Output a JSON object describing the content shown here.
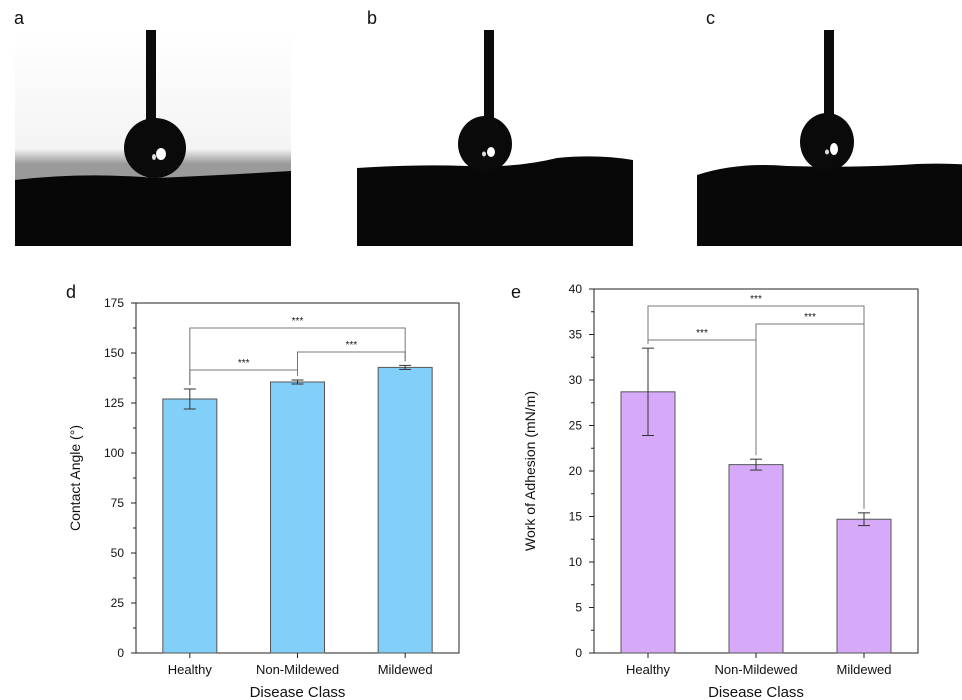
{
  "panels": {
    "a": "a",
    "b": "b",
    "c": "c",
    "d": "d",
    "e": "e"
  },
  "colors": {
    "contact_angle_bar": "#82cffa",
    "adhesion_bar": "#d6aaf8",
    "bar_stroke": "#555555"
  },
  "chart_data": [
    {
      "type": "bar",
      "panel": "d",
      "categories": [
        "Healthy",
        "Non-Mildewed",
        "Mildewed"
      ],
      "values": [
        127,
        135.5,
        142.8
      ],
      "errors": [
        5,
        1,
        1
      ],
      "xlabel": "Disease Class",
      "ylabel": "Contact Angle (°)",
      "ylim": [
        0,
        175
      ],
      "yticks": [
        0,
        25,
        50,
        75,
        100,
        125,
        150,
        175
      ],
      "significance": [
        {
          "from": 0,
          "to": 1,
          "label": "***"
        },
        {
          "from": 1,
          "to": 2,
          "label": "***"
        },
        {
          "from": 0,
          "to": 2,
          "label": "***"
        }
      ],
      "grid": false
    },
    {
      "type": "bar",
      "panel": "e",
      "categories": [
        "Healthy",
        "Non-Mildewed",
        "Mildewed"
      ],
      "values": [
        28.7,
        20.7,
        14.7
      ],
      "errors": [
        4.8,
        0.6,
        0.7
      ],
      "xlabel": "Disease Class",
      "ylabel": "Work of Adhesion (mN/m)",
      "ylim": [
        0,
        40
      ],
      "yticks": [
        0,
        5,
        10,
        15,
        20,
        25,
        30,
        35,
        40
      ],
      "significance": [
        {
          "from": 0,
          "to": 1,
          "label": "***"
        },
        {
          "from": 1,
          "to": 2,
          "label": "***"
        },
        {
          "from": 0,
          "to": 2,
          "label": "***"
        }
      ],
      "grid": false
    }
  ]
}
